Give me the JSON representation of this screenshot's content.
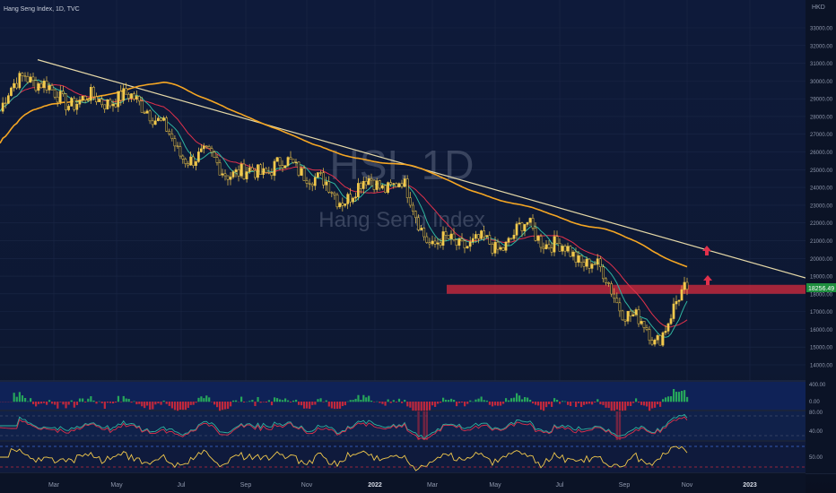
{
  "header": {
    "symbol_info": "Hang Seng Index, 1D, TVC"
  },
  "watermark": {
    "symbol": "HSI, 1D",
    "name": "Hang Seng Index"
  },
  "currency_label": "HKD",
  "price_axis": {
    "ticks": [
      "33000.00",
      "32000.00",
      "31000.00",
      "30000.00",
      "29000.00",
      "28000.00",
      "27000.00",
      "26000.00",
      "25000.00",
      "24000.00",
      "23000.00",
      "22000.00",
      "21000.00",
      "20000.00",
      "19000.00",
      "18000.00",
      "17000.00",
      "16000.00",
      "15000.00",
      "14000.00"
    ],
    "current_price_label": "18256.49",
    "current_price": 18256.49,
    "badge_color": "#1e8e3e"
  },
  "time_axis": {
    "labels": [
      "Mar",
      "May",
      "Jul",
      "Sep",
      "Nov",
      "2022",
      "Mar",
      "May",
      "Jul",
      "Sep",
      "Nov",
      "2023"
    ]
  },
  "indicators": {
    "pane1": {
      "labels": [
        "400.00",
        "0.00"
      ]
    },
    "pane2": {
      "labels": [
        "80.00",
        "40.00"
      ]
    },
    "pane3": {
      "labels": [
        "50.00"
      ]
    }
  },
  "colors": {
    "background": "#0b1326",
    "candle": "#f2c94c",
    "trendline": "#e6d9a8",
    "ma_long": "#f5a623",
    "ma_mid": "#e0314b",
    "ma_short": "#2fb5a0",
    "support_zone": "#c0283c",
    "hist_up": "#26a65b",
    "hist_down": "#c0283c",
    "osc_up": "#2fb5a0",
    "osc_down": "#e0314b",
    "cci": "#f2c94c",
    "arrow": "#e0314b"
  },
  "chart_data": {
    "type": "line",
    "title": "Hang Seng Index, 1D, TVC",
    "xlabel": "",
    "ylabel": "HKD",
    "ylim": [
      13400,
      33800
    ],
    "x": [
      "2021-01",
      "2021-02",
      "2021-03",
      "2021-04",
      "2021-05",
      "2021-06",
      "2021-07",
      "2021-08",
      "2021-09",
      "2021-10",
      "2021-11",
      "2021-12",
      "2022-01",
      "2022-02",
      "2022-03",
      "2022-04",
      "2022-05",
      "2022-06",
      "2022-07",
      "2022-08",
      "2022-09",
      "2022-10",
      "2022-11"
    ],
    "series": [
      {
        "name": "",
        "values": [
          28300,
          30600,
          29200,
          28800,
          29100,
          28700,
          26000,
          25500,
          24600,
          25300,
          25000,
          23400,
          24300,
          24100,
          20700,
          21000,
          20600,
          21800,
          20500,
          19800,
          17300,
          15400,
          18256
        ]
      }
    ],
    "support_level": 18256.49,
    "trendline": {
      "start": [
        "2021-02",
        31200
      ],
      "end": [
        "2022-11",
        18900
      ]
    }
  }
}
